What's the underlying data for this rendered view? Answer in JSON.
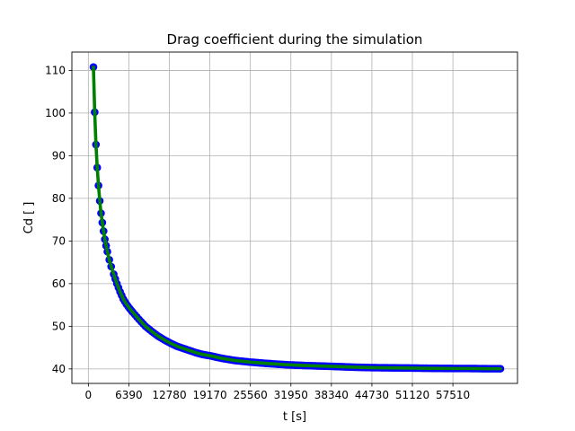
{
  "chart_data": {
    "type": "line",
    "title": "Drag coefficient during the simulation",
    "xlabel": "t [s]",
    "ylabel": "Cd [ ]",
    "xlim": [
      -2600,
      67700
    ],
    "ylim": [
      36.6,
      114.3
    ],
    "grid": true,
    "xticks": [
      0,
      6390,
      12780,
      19170,
      25560,
      31950,
      38340,
      44730,
      51120,
      57510
    ],
    "xtick_labels": [
      "0",
      "6390",
      "12780",
      "19170",
      "25560",
      "31950",
      "38340",
      "44730",
      "51120",
      "57510"
    ],
    "yticks": [
      40,
      50,
      60,
      70,
      80,
      90,
      100,
      110
    ],
    "ytick_labels": [
      "40",
      "50",
      "60",
      "70",
      "80",
      "90",
      "100",
      "110"
    ],
    "series": [
      {
        "marker_color": "#0000ff",
        "line_color": "#008000",
        "x": [
          800,
          1000,
          1200,
          1400,
          1600,
          1800,
          2000,
          2200,
          2400,
          2600,
          2800,
          3000,
          3300,
          3600,
          4000,
          4500,
          5000,
          5500,
          6000,
          6500,
          7000,
          8000,
          9000,
          10000,
          11000,
          12000,
          13000,
          14000,
          15000,
          16000,
          17000,
          18000,
          19170,
          21000,
          23000,
          25560,
          28000,
          31000,
          34000,
          38340,
          42000,
          44730,
          48000,
          51120,
          54000,
          57510,
          60000,
          63000,
          65000
        ],
        "y": [
          110.8,
          100.2,
          92.6,
          87.2,
          83.0,
          79.4,
          76.5,
          74.3,
          72.3,
          70.4,
          68.9,
          67.5,
          65.6,
          64.0,
          62.2,
          60.0,
          58.1,
          56.4,
          55.2,
          54.2,
          53.3,
          51.6,
          50.0,
          48.8,
          47.7,
          46.8,
          46.0,
          45.3,
          44.8,
          44.3,
          43.8,
          43.4,
          43.1,
          42.5,
          42.0,
          41.6,
          41.3,
          41.0,
          40.8,
          40.6,
          40.4,
          40.3,
          40.25,
          40.2,
          40.15,
          40.1,
          40.1,
          40.05,
          40.05
        ]
      }
    ]
  }
}
